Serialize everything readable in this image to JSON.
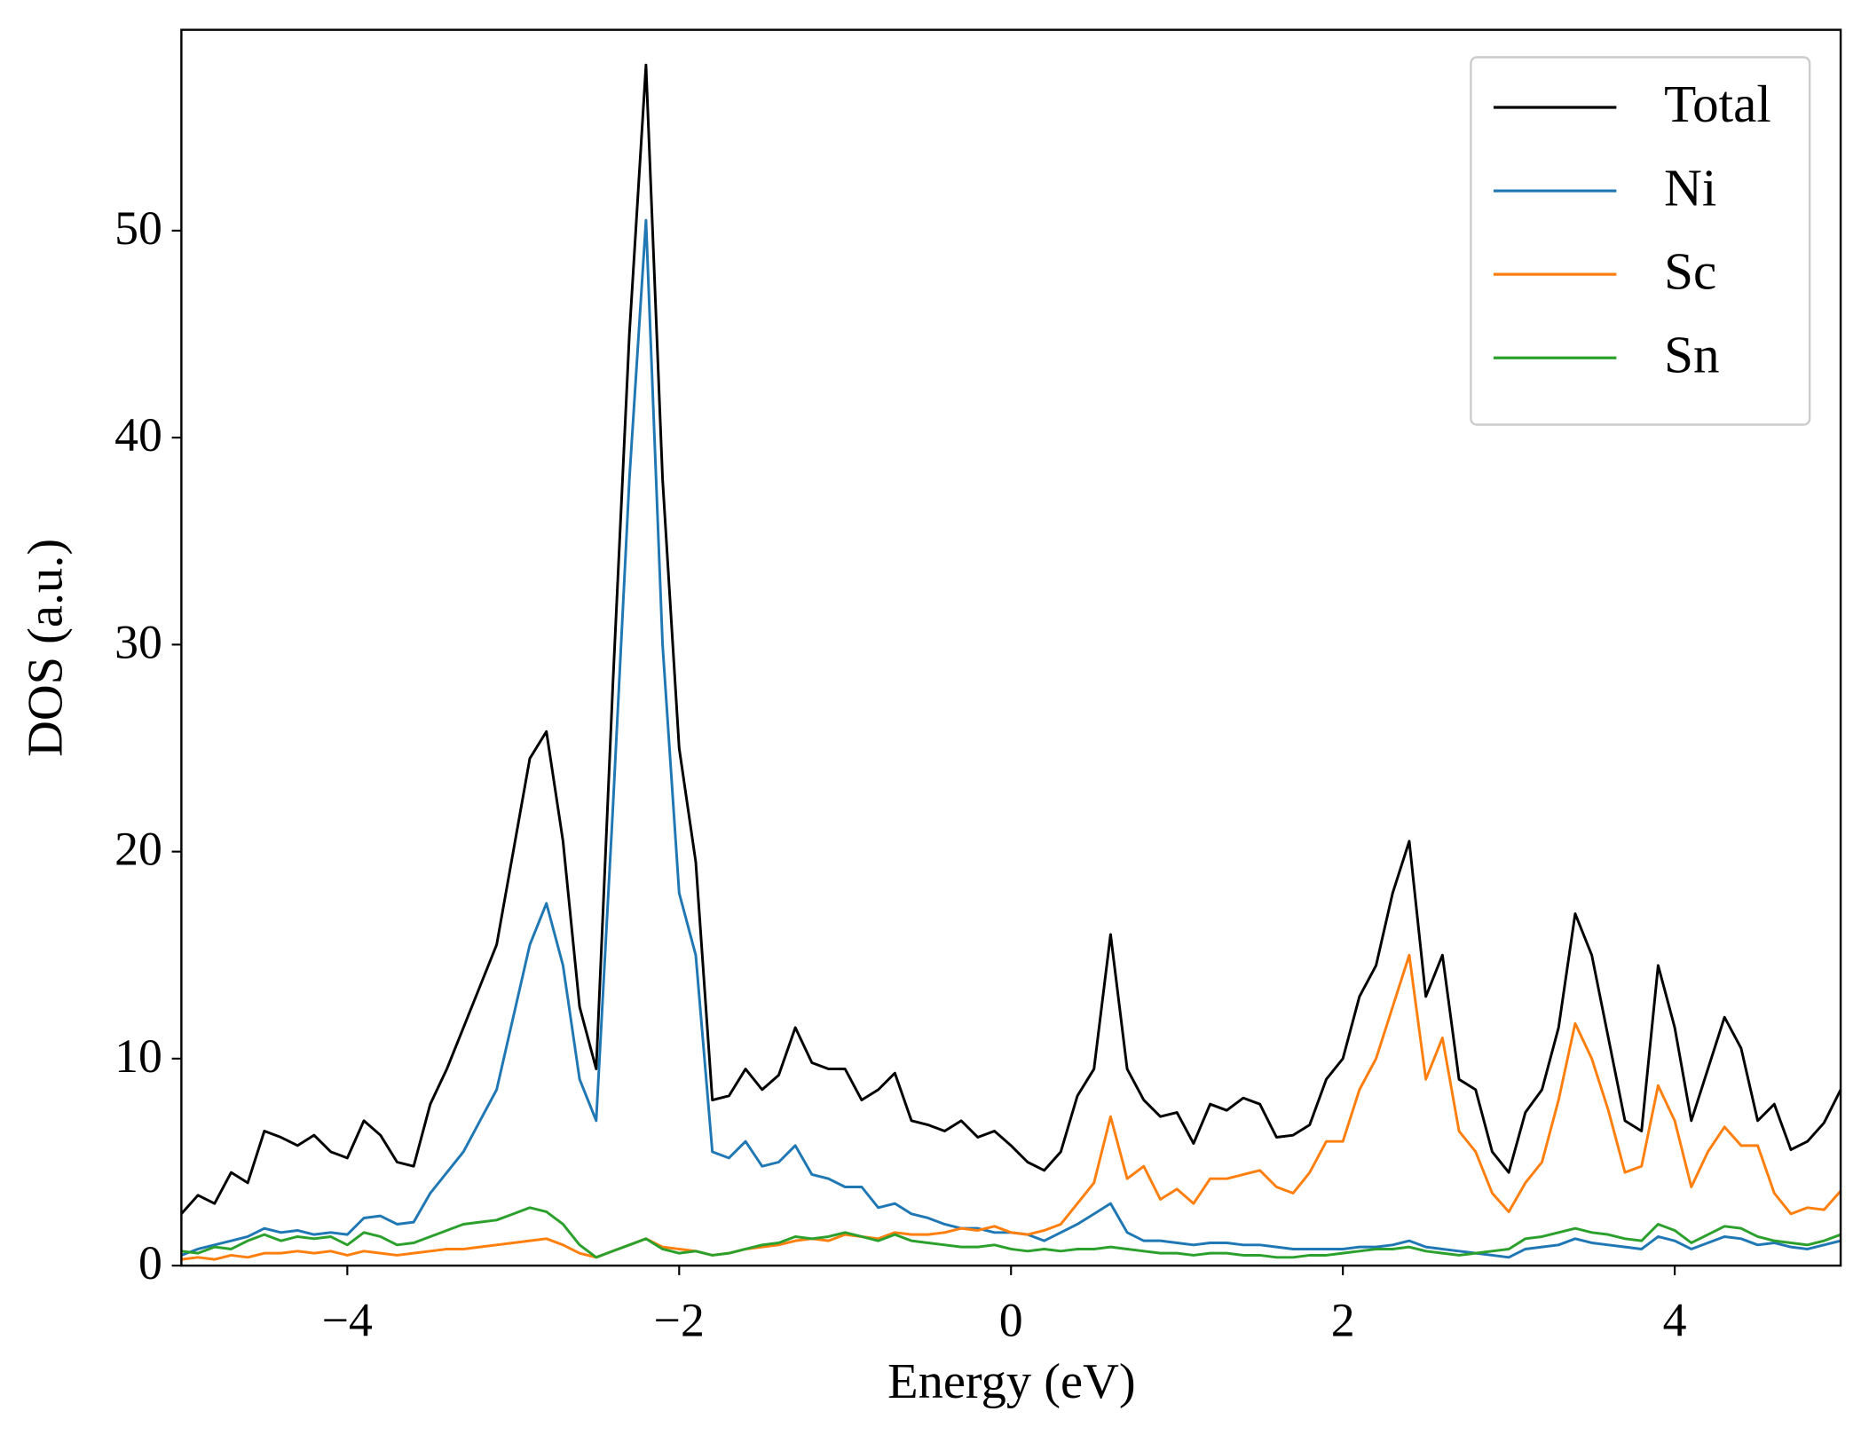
{
  "chart_data": {
    "type": "line",
    "xlabel": "Energy (eV)",
    "ylabel": "DOS (a.u.)",
    "x": [
      -5.0,
      -4.9,
      -4.8,
      -4.7,
      -4.6,
      -4.5,
      -4.4,
      -4.3,
      -4.2,
      -4.1,
      -4.0,
      -3.9,
      -3.8,
      -3.7,
      -3.6,
      -3.5,
      -3.4,
      -3.3,
      -3.2,
      -3.1,
      -3.0,
      -2.9,
      -2.8,
      -2.7,
      -2.6,
      -2.5,
      -2.4,
      -2.3,
      -2.2,
      -2.1,
      -2.0,
      -1.9,
      -1.8,
      -1.7,
      -1.6,
      -1.5,
      -1.4,
      -1.3,
      -1.2,
      -1.1,
      -1.0,
      -0.9,
      -0.8,
      -0.7,
      -0.6,
      -0.5,
      -0.4,
      -0.3,
      -0.2,
      -0.1,
      0.0,
      0.1,
      0.2,
      0.3,
      0.4,
      0.5,
      0.6,
      0.7,
      0.8,
      0.9,
      1.0,
      1.1,
      1.2,
      1.3,
      1.4,
      1.5,
      1.6,
      1.7,
      1.8,
      1.9,
      2.0,
      2.1,
      2.2,
      2.3,
      2.4,
      2.5,
      2.6,
      2.7,
      2.8,
      2.9,
      3.0,
      3.1,
      3.2,
      3.3,
      3.4,
      3.5,
      3.6,
      3.7,
      3.8,
      3.9,
      4.0,
      4.1,
      4.2,
      4.3,
      4.4,
      4.5,
      4.6,
      4.7,
      4.8,
      4.9,
      5.0
    ],
    "series": [
      {
        "name": "Total",
        "color": "#000000",
        "values": [
          2.5,
          3.4,
          3.0,
          4.5,
          4.0,
          6.5,
          6.2,
          5.8,
          6.3,
          5.5,
          5.2,
          7.0,
          6.3,
          5.0,
          4.8,
          7.8,
          9.5,
          11.5,
          13.5,
          15.5,
          20.0,
          24.5,
          25.8,
          20.5,
          12.5,
          9.5,
          28.0,
          45.0,
          58.0,
          38.0,
          25.0,
          19.5,
          8.0,
          8.2,
          9.5,
          8.5,
          9.2,
          11.5,
          9.8,
          9.5,
          9.5,
          8.0,
          8.5,
          9.3,
          7.0,
          6.8,
          6.5,
          7.0,
          6.2,
          6.5,
          5.8,
          5.0,
          4.6,
          5.5,
          8.2,
          9.5,
          16.0,
          9.5,
          8.0,
          7.2,
          7.4,
          5.9,
          7.8,
          7.5,
          8.1,
          7.8,
          6.2,
          6.3,
          6.8,
          9.0,
          10.0,
          13.0,
          14.5,
          18.0,
          20.5,
          13.0,
          15.0,
          9.0,
          8.5,
          5.5,
          4.5,
          7.4,
          8.5,
          11.5,
          17.0,
          15.0,
          11.0,
          7.0,
          6.5,
          14.5,
          11.5,
          7.0,
          9.5,
          12.0,
          10.5,
          7.0,
          7.8,
          5.6,
          6.0,
          6.9,
          8.5
        ]
      },
      {
        "name": "Ni",
        "color": "#1f77b4",
        "values": [
          0.5,
          0.8,
          1.0,
          1.2,
          1.4,
          1.8,
          1.6,
          1.7,
          1.5,
          1.6,
          1.5,
          2.3,
          2.4,
          2.0,
          2.1,
          3.5,
          4.5,
          5.5,
          7.0,
          8.5,
          12.0,
          15.5,
          17.5,
          14.5,
          9.0,
          7.0,
          22.0,
          38.0,
          50.5,
          30.0,
          18.0,
          15.0,
          5.5,
          5.2,
          6.0,
          4.8,
          5.0,
          5.8,
          4.4,
          4.2,
          3.8,
          3.8,
          2.8,
          3.0,
          2.5,
          2.3,
          2.0,
          1.8,
          1.8,
          1.6,
          1.6,
          1.5,
          1.2,
          1.6,
          2.0,
          2.5,
          3.0,
          1.6,
          1.2,
          1.2,
          1.1,
          1.0,
          1.1,
          1.1,
          1.0,
          1.0,
          0.9,
          0.8,
          0.8,
          0.8,
          0.8,
          0.9,
          0.9,
          1.0,
          1.2,
          0.9,
          0.8,
          0.7,
          0.6,
          0.5,
          0.4,
          0.8,
          0.9,
          1.0,
          1.3,
          1.1,
          1.0,
          0.9,
          0.8,
          1.4,
          1.2,
          0.8,
          1.1,
          1.4,
          1.3,
          1.0,
          1.1,
          0.9,
          0.8,
          1.0,
          1.2
        ]
      },
      {
        "name": "Sc",
        "color": "#ff7f0e",
        "values": [
          0.3,
          0.4,
          0.3,
          0.5,
          0.4,
          0.6,
          0.6,
          0.7,
          0.6,
          0.7,
          0.5,
          0.7,
          0.6,
          0.5,
          0.6,
          0.7,
          0.8,
          0.8,
          0.9,
          1.0,
          1.1,
          1.2,
          1.3,
          1.0,
          0.6,
          0.4,
          0.7,
          1.0,
          1.3,
          0.9,
          0.8,
          0.7,
          0.5,
          0.6,
          0.8,
          0.9,
          1.0,
          1.2,
          1.3,
          1.2,
          1.5,
          1.4,
          1.3,
          1.6,
          1.5,
          1.5,
          1.6,
          1.8,
          1.7,
          1.9,
          1.6,
          1.5,
          1.7,
          2.0,
          3.0,
          4.0,
          7.2,
          4.2,
          4.8,
          3.2,
          3.7,
          3.0,
          4.2,
          4.2,
          4.4,
          4.6,
          3.8,
          3.5,
          4.5,
          6.0,
          6.0,
          8.5,
          10.0,
          12.5,
          15.0,
          9.0,
          11.0,
          6.5,
          5.5,
          3.5,
          2.6,
          4.0,
          5.0,
          8.0,
          11.7,
          10.0,
          7.5,
          4.5,
          4.8,
          8.7,
          7.0,
          3.8,
          5.5,
          6.7,
          5.8,
          5.8,
          3.5,
          2.5,
          2.8,
          2.7,
          3.6
        ]
      },
      {
        "name": "Sn",
        "color": "#2ca02c",
        "values": [
          0.7,
          0.6,
          0.9,
          0.8,
          1.2,
          1.5,
          1.2,
          1.4,
          1.3,
          1.4,
          1.0,
          1.6,
          1.4,
          1.0,
          1.1,
          1.4,
          1.7,
          2.0,
          2.1,
          2.2,
          2.5,
          2.8,
          2.6,
          2.0,
          1.0,
          0.4,
          0.7,
          1.0,
          1.3,
          0.8,
          0.6,
          0.7,
          0.5,
          0.6,
          0.8,
          1.0,
          1.1,
          1.4,
          1.3,
          1.4,
          1.6,
          1.4,
          1.2,
          1.5,
          1.2,
          1.1,
          1.0,
          0.9,
          0.9,
          1.0,
          0.8,
          0.7,
          0.8,
          0.7,
          0.8,
          0.8,
          0.9,
          0.8,
          0.7,
          0.6,
          0.6,
          0.5,
          0.6,
          0.6,
          0.5,
          0.5,
          0.4,
          0.4,
          0.5,
          0.5,
          0.6,
          0.7,
          0.8,
          0.8,
          0.9,
          0.7,
          0.6,
          0.5,
          0.6,
          0.7,
          0.8,
          1.3,
          1.4,
          1.6,
          1.8,
          1.6,
          1.5,
          1.3,
          1.2,
          2.0,
          1.7,
          1.1,
          1.5,
          1.9,
          1.8,
          1.4,
          1.2,
          1.1,
          1.0,
          1.2,
          1.5
        ]
      }
    ],
    "xlim": [
      -5,
      5
    ],
    "ylim": [
      0,
      59.7
    ],
    "xticks": [
      {
        "value": -4,
        "label": "−4"
      },
      {
        "value": -2,
        "label": "−2"
      },
      0,
      2,
      4
    ],
    "yticks": [
      0,
      10,
      20,
      30,
      40,
      50
    ],
    "legend": "upper right",
    "grid": false
  }
}
